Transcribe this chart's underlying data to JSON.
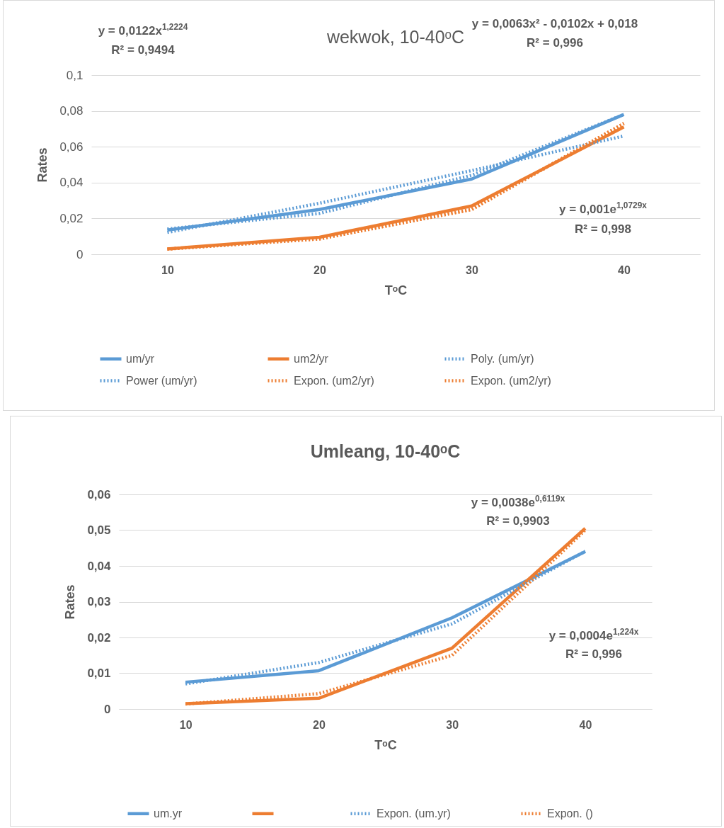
{
  "chart_data": [
    {
      "type": "line",
      "title": "wekwok, 10-40ᵒC",
      "xlabel": "TᵒC",
      "ylabel": "Rates",
      "categories": [
        "10",
        "20",
        "30",
        "40"
      ],
      "series": [
        {
          "name": "um/yr",
          "color": "#5b9bd5",
          "line_style": "solid",
          "values": [
            0.0135,
            0.025,
            0.042,
            0.078
          ]
        },
        {
          "name": "um2/yr",
          "color": "#ed7d31",
          "line_style": "solid",
          "values": [
            0.003,
            0.0095,
            0.027,
            0.071
          ]
        },
        {
          "name": "Poly. (um/yr)",
          "color": "#5b9bd5",
          "line_style": "dotted",
          "values": [
            0.0141,
            0.0228,
            0.0441,
            0.078
          ]
        },
        {
          "name": "Power (um/yr)",
          "color": "#5b9bd5",
          "line_style": "dotted",
          "values": [
            0.0122,
            0.0285,
            0.0467,
            0.066
          ]
        },
        {
          "name": "Expon. (um2/yr)",
          "color": "#ed7d31",
          "line_style": "dotted",
          "values": [
            0.0029,
            0.0086,
            0.025,
            0.073
          ]
        },
        {
          "name": "Expon. (um2/yr)",
          "color": "#ed7d31",
          "line_style": "dotted",
          "values": [
            0.0029,
            0.0086,
            0.025,
            0.073
          ]
        }
      ],
      "ylim": [
        0,
        0.1
      ],
      "yticks": [
        0,
        {
          "value": 0.02,
          "label": "0,02"
        },
        {
          "value": 0.04,
          "label": "0,04"
        },
        {
          "value": 0.06,
          "label": "0,06"
        },
        {
          "value": 0.08,
          "label": "0,08"
        },
        {
          "value": 0.1,
          "label": "0,1"
        }
      ],
      "grid": "y",
      "legend": "bottom",
      "annotations": [
        "y = 0,0122x$^{1,2224}$",
        "R² = 0,9494",
        "y = 0,0063x² - 0,0102x + 0,018",
        "R² = 0,996",
        "y = 0,001e$^{1,0729x}$",
        "R² = 0,998"
      ]
    },
    {
      "type": "line",
      "title": "Umleang, 10-40ᵒC",
      "xlabel": "TᵒC",
      "ylabel": "Rates",
      "categories": [
        "10",
        "20",
        "30",
        "40"
      ],
      "series": [
        {
          "name": "um.yr",
          "color": "#5b9bd5",
          "line_style": "solid",
          "values": [
            0.0075,
            0.0107,
            0.0255,
            0.044
          ]
        },
        {
          "color": "#ed7d31",
          "line_style": "solid",
          "values": [
            0.0015,
            0.003,
            0.017,
            0.0505
          ]
        },
        {
          "name": "Expon. (um.yr)",
          "color": "#5b9bd5",
          "line_style": "dotted",
          "values": [
            0.007,
            0.013,
            0.0238,
            0.0441
          ]
        },
        {
          "name": "Expon. ()",
          "color": "#ed7d31",
          "line_style": "dotted",
          "values": [
            0.0014,
            0.0043,
            0.015,
            0.05
          ]
        }
      ],
      "ylim": [
        0,
        0.06
      ],
      "yticks": [
        0,
        {
          "value": 0.01,
          "label": "0,01"
        },
        {
          "value": 0.02,
          "label": "0,02"
        },
        {
          "value": 0.03,
          "label": "0,03"
        },
        {
          "value": 0.04,
          "label": "0,04"
        },
        {
          "value": 0.05,
          "label": "0,05"
        },
        {
          "value": 0.06,
          "label": "0,06"
        }
      ],
      "grid": "y",
      "legend": "bottom",
      "annotations": [
        "y = 0,0038e$^{0,6119x}$",
        "R² = 0,9903",
        "y = 0,0004e$^{1,224x}$",
        "R² = 0,996"
      ]
    }
  ]
}
